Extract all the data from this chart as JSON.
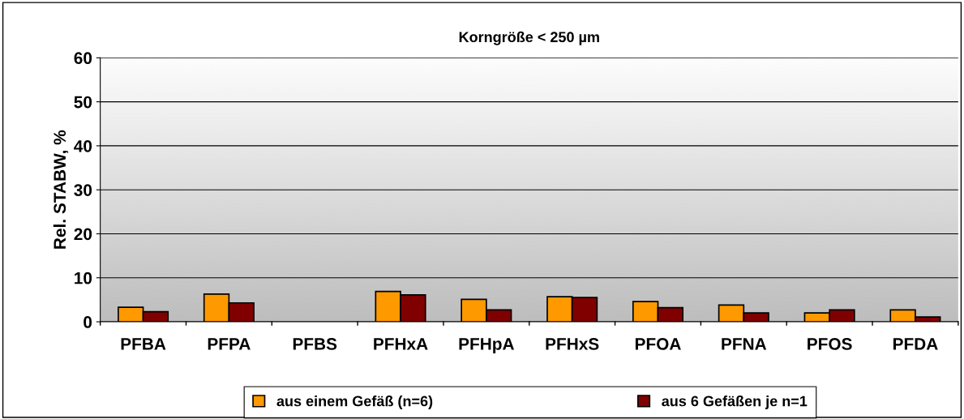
{
  "chart_data": {
    "type": "bar",
    "title": "Korngröße < 250 µm",
    "ylabel": "Rel. STABW, %",
    "categories": [
      "PFBA",
      "PFPA",
      "PFBS",
      "PFHxA",
      "PFHpA",
      "PFHxS",
      "PFOA",
      "PFNA",
      "PFOS",
      "PFDA"
    ],
    "series": [
      {
        "name": "aus einem Gefäß (n=6)",
        "color": "#ff9900",
        "values": [
          3.3,
          6.3,
          null,
          6.9,
          5.1,
          5.7,
          4.6,
          3.8,
          2.0,
          2.7
        ]
      },
      {
        "name": "aus 6 Gefäßen je n=1",
        "color": "#800000",
        "values": [
          2.3,
          4.3,
          null,
          6.1,
          2.7,
          5.5,
          3.2,
          2.0,
          2.7,
          1.1
        ]
      }
    ],
    "ylim": [
      0,
      60
    ],
    "yticks": [
      0,
      10,
      20,
      30,
      40,
      50,
      60
    ],
    "grid": "y",
    "legend": "bottom"
  }
}
